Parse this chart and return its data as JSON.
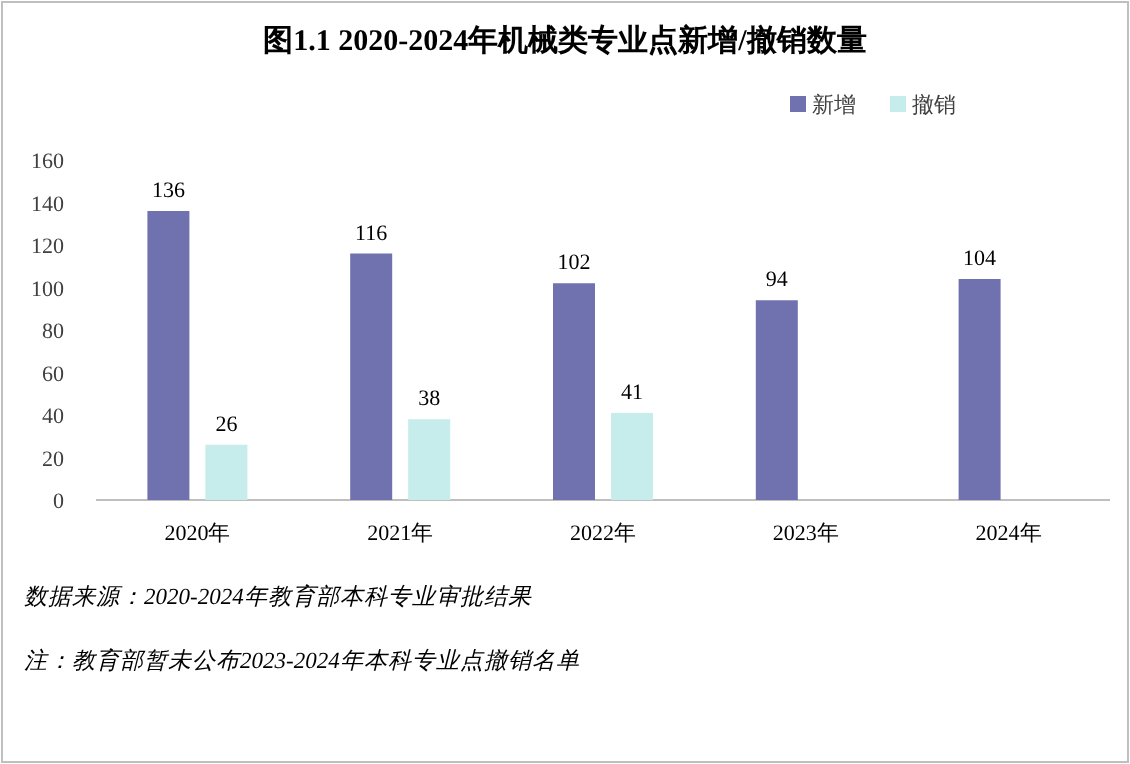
{
  "chart_data": {
    "type": "bar",
    "title": "图1.1  2020-2024年机械类专业点新增/撤销数量",
    "categories": [
      "2020年",
      "2021年",
      "2022年",
      "2023年",
      "2024年"
    ],
    "series": [
      {
        "name": "新增",
        "color": "#7072b0",
        "values": [
          136,
          116,
          102,
          94,
          104
        ]
      },
      {
        "name": "撤销",
        "color": "#c6eceb",
        "values": [
          26,
          38,
          41,
          null,
          null
        ]
      }
    ],
    "ylim": [
      0,
      160
    ],
    "yticks": [
      0,
      20,
      40,
      60,
      80,
      100,
      120,
      140,
      160
    ],
    "data_labels": true,
    "legend": "top right",
    "annotations": [
      "数据来源：2020-2024年教育部本科专业审批结果",
      "注：教育部暂未公布2023-2024年本科专业点撤销名单"
    ]
  }
}
